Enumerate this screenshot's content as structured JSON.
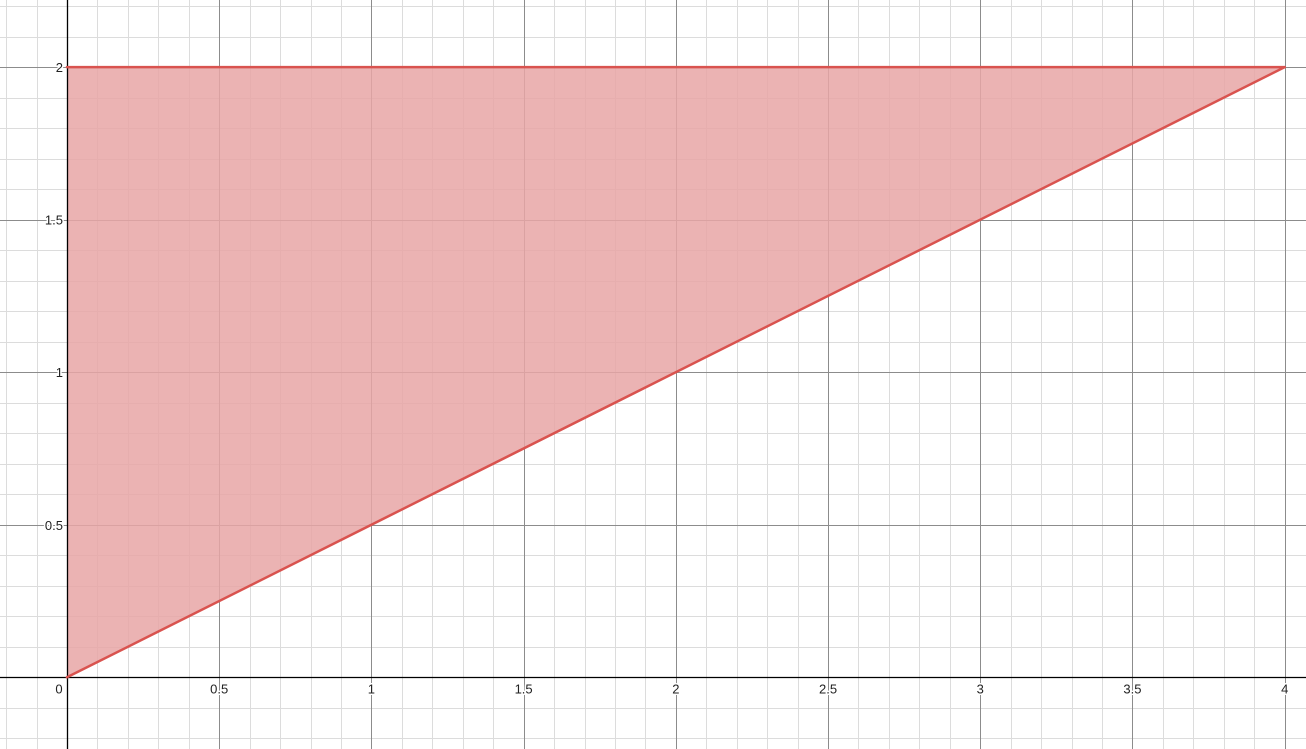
{
  "chart_data": {
    "type": "area",
    "title": "",
    "xlabel": "",
    "ylabel": "",
    "xlim": [
      -0.22,
      4.07
    ],
    "ylim": [
      -0.235,
      2.22
    ],
    "x_ticks": [
      "0",
      "0.5",
      "1",
      "1.5",
      "2",
      "2.5",
      "3",
      "3.5",
      "4"
    ],
    "y_ticks": [
      "0.5",
      "1",
      "1.5",
      "2"
    ],
    "grid": true,
    "minor_grid_step": 0.1,
    "series": [
      {
        "x": [
          0,
          4
        ],
        "y": [
          0,
          2
        ]
      },
      {
        "x": [
          0,
          4
        ],
        "y": [
          2,
          2
        ]
      }
    ],
    "shaded_region": {
      "vertices": [
        [
          0,
          0
        ],
        [
          4,
          2
        ],
        [
          0,
          2
        ]
      ]
    },
    "colors": {
      "curve": "#d9534f",
      "fill": "#e8a6a6",
      "major_grid": "#8c8c8c",
      "minor_grid": "#dcdcdc",
      "axis": "#000000"
    }
  }
}
